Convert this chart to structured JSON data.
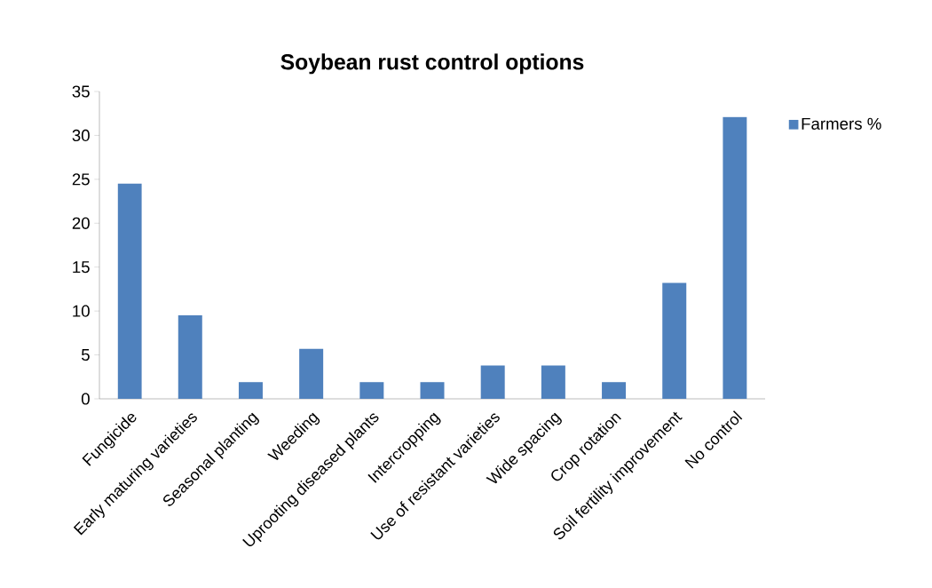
{
  "chart_data": {
    "type": "bar",
    "title": "Soybean rust control options",
    "categories": [
      "Fungicide",
      "Early maturing varieties",
      "Seasonal planting",
      "Weeding",
      "Uprooting diseased plants",
      "Intercropping",
      "Use of resistant varieties",
      "Wide spacing",
      "Crop rotation",
      "Soil fertility improvement",
      "No control"
    ],
    "series": [
      {
        "name": "Farmers %",
        "color": "#4f81bd",
        "values": [
          24.5,
          9.5,
          1.9,
          5.7,
          1.9,
          1.9,
          3.8,
          3.8,
          1.9,
          13.2,
          32.1
        ]
      }
    ],
    "ylim": [
      0,
      35
    ],
    "yticks": [
      0,
      5,
      10,
      15,
      20,
      25,
      30,
      35
    ],
    "grid": false,
    "legend": "top right"
  }
}
